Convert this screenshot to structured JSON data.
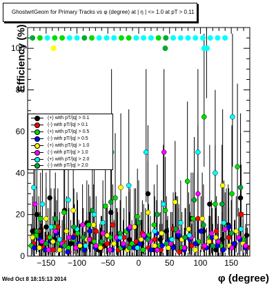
{
  "title": "GhostwrtGeom for Primary Tracks vs φ (degree) at |  η | <= 1.0 at pT > 0.11",
  "timestamp": "Wed Oct  8 18:15:13 2014",
  "colors": {
    "black": "#000000",
    "red": "#ff0000",
    "green": "#00dd00",
    "blue": "#0000ff",
    "yellow": "#ffff00",
    "magenta": "#ff00ff",
    "cyan": "#00ffff",
    "darkgreen": "#00aa33"
  },
  "chart_data": {
    "type": "scatter",
    "xlabel": "φ (degree)",
    "ylabel": "Efficiency (%)",
    "xlim": [
      -180,
      180
    ],
    "ylim": [
      0,
      110
    ],
    "xticks": [
      -150,
      -100,
      -50,
      0,
      50,
      100,
      150
    ],
    "yticks": [
      0,
      20,
      40,
      60,
      80,
      100
    ],
    "legend_position": "left-middle",
    "series": [
      {
        "name": "(+) with pT/|q| > 0.1",
        "color": "#000000",
        "x": [
          -172,
          -165,
          -158,
          -150,
          -144,
          -136,
          -128,
          -120,
          -110,
          -100,
          -92,
          -84,
          -75,
          -65,
          -55,
          -45,
          -35,
          -25,
          -15,
          -5,
          5,
          15,
          25,
          35,
          45,
          55,
          65,
          75,
          85,
          95,
          105,
          115,
          125,
          135,
          145,
          155,
          165,
          175
        ],
        "y": [
          12,
          20,
          5,
          14,
          28,
          8,
          3,
          22,
          6,
          12,
          4,
          16,
          7,
          3,
          5,
          21,
          9,
          4,
          8,
          14,
          6,
          30,
          3,
          8,
          12,
          5,
          9,
          4,
          18,
          6,
          12,
          25,
          3,
          8,
          15,
          5,
          28,
          10
        ]
      },
      {
        "name": "(-) with pT/|q| > 0.1",
        "color": "#ff0000",
        "x": [
          -170,
          -162,
          -155,
          -147,
          -139,
          -131,
          -122,
          -113,
          -104,
          -96,
          -87,
          -78,
          -69,
          -60,
          -51,
          -42,
          -33,
          -24,
          -14,
          -4,
          6,
          16,
          26,
          36,
          46,
          56,
          66,
          76,
          86,
          96,
          106,
          116,
          126,
          136,
          146,
          156,
          166,
          176
        ],
        "y": [
          6,
          12,
          4,
          9,
          3,
          14,
          7,
          2,
          10,
          5,
          3,
          8,
          12,
          4,
          6,
          15,
          3,
          9,
          5,
          7,
          11,
          4,
          8,
          3,
          6,
          13,
          2,
          9,
          5,
          18,
          4,
          7,
          12,
          3,
          9,
          6,
          20,
          4
        ]
      },
      {
        "name": "(+) with pT/|q| > 0.5",
        "color": "#00dd00",
        "x": [
          -174,
          -166,
          -159,
          -152,
          -144,
          -137,
          -129,
          -121,
          -114,
          -106,
          -99,
          -90,
          -81,
          -72,
          -63,
          -54,
          -46,
          -38,
          -29,
          -20,
          -11,
          -2,
          7,
          16,
          25,
          34,
          43,
          52,
          61,
          70,
          79,
          88,
          97,
          106,
          115,
          124,
          133,
          142,
          151,
          160,
          169
        ],
        "y": [
          5,
          10,
          18,
          3,
          9,
          14,
          6,
          21,
          4,
          8,
          11,
          3,
          15,
          7,
          5,
          24,
          9,
          28,
          4,
          12,
          6,
          19,
          3,
          10,
          15,
          5,
          22,
          8,
          12,
          4,
          36,
          18,
          7,
          67,
          9,
          25,
          5,
          14,
          30,
          43,
          8
        ]
      },
      {
        "name": "(-) with pT/|q| > 0.5",
        "color": "#0000ff",
        "x": [
          -169,
          -160,
          -151,
          -142,
          -133,
          -124,
          -115,
          -106,
          -97,
          -88,
          -79,
          -70,
          -61,
          -52,
          -43,
          -34,
          -25,
          -16,
          -7,
          2,
          11,
          20,
          29,
          38,
          47,
          56,
          65,
          74,
          83,
          92,
          101,
          110,
          119,
          128,
          137,
          146,
          155,
          164,
          173
        ],
        "y": [
          4,
          8,
          3,
          7,
          11,
          5,
          2,
          9,
          6,
          3,
          12,
          4,
          7,
          10,
          3,
          8,
          5,
          13,
          4,
          6,
          9,
          3,
          11,
          5,
          7,
          4,
          10,
          3,
          8,
          6,
          12,
          4,
          9,
          5,
          3,
          14,
          6,
          8,
          4
        ]
      },
      {
        "name": "(+) with pT/|q| > 1.0",
        "color": "#ffff00",
        "x": [
          -172,
          -161,
          -150,
          -139,
          -128,
          -117,
          -106,
          -95,
          -84,
          -73,
          -62,
          -51,
          -40,
          -29,
          -18,
          -7,
          4,
          15,
          26,
          37,
          48,
          59,
          70,
          81,
          92,
          103,
          114,
          125,
          136,
          147,
          158,
          169
        ],
        "y": [
          9,
          4,
          18,
          7,
          3,
          12,
          22,
          5,
          8,
          15,
          4,
          10,
          6,
          33,
          3,
          14,
          8,
          21,
          5,
          11,
          4,
          26,
          8,
          13,
          3,
          18,
          7,
          9,
          34,
          5,
          12,
          6
        ]
      },
      {
        "name": "(-) with pT/|q| > 1.0",
        "color": "#ff00ff",
        "x": [
          -168,
          -157,
          -146,
          -135,
          -124,
          -113,
          -102,
          -91,
          -80,
          -69,
          -58,
          -47,
          -36,
          -25,
          -14,
          -3,
          8,
          19,
          30,
          41,
          52,
          63,
          74,
          85,
          96,
          107,
          118,
          129,
          140,
          151,
          162,
          173
        ],
        "y": [
          25,
          7,
          3,
          12,
          6,
          9,
          4,
          15,
          8,
          5,
          11,
          3,
          9,
          6,
          14,
          4,
          10,
          7,
          3,
          50,
          6,
          12,
          4,
          9,
          30,
          5,
          11,
          7,
          13,
          4,
          9,
          5
        ]
      },
      {
        "name": "(+) with pT/|q| > 2.0",
        "color": "#00ffff",
        "x": [
          -170,
          -156,
          -142,
          -128,
          -114,
          -100,
          -86,
          -72,
          -58,
          -44,
          -30,
          -16,
          -2,
          12,
          26,
          40,
          54,
          68,
          82,
          96,
          110,
          124,
          138,
          152,
          166
        ],
        "y": [
          33,
          25,
          14,
          8,
          27,
          13,
          5,
          20,
          16,
          50,
          9,
          34,
          4,
          50,
          12,
          25,
          8,
          16,
          10,
          50,
          100,
          40,
          16,
          67,
          13
        ]
      },
      {
        "name": "(-) with pT/|q| > 2.0",
        "color": "#00aa33",
        "x": [
          -165,
          -150,
          -135,
          -120,
          -105,
          -90,
          -75,
          -60,
          -45,
          -30,
          -15,
          0,
          15,
          30,
          45,
          60,
          75,
          90,
          105,
          120,
          135,
          150,
          165
        ],
        "y": [
          12,
          6,
          18,
          5,
          14,
          9,
          22,
          7,
          26,
          11,
          4,
          16,
          8,
          20,
          6,
          13,
          9,
          27,
          15,
          5,
          25,
          11,
          33
        ]
      }
    ],
    "top_row": {
      "y": 105,
      "x": [
        -172,
        -160,
        -148,
        -136,
        -124,
        -112,
        -100,
        -88,
        -76,
        -64,
        -52,
        -40,
        -28,
        -16,
        -4,
        8,
        20,
        32,
        44,
        56,
        68,
        80,
        92,
        104,
        116,
        128,
        140
      ],
      "colors": [
        "#00aa33",
        "#00dd00",
        "#00ffff",
        "#00dd00",
        "#00dd00",
        "#00ffff",
        "#00ffff",
        "#00aa33",
        "#00dd00",
        "#00ffff",
        "#00ffff",
        "#00ffff",
        "#00dd00",
        "#00dd00",
        "#00ffff",
        "#00ffff",
        "#00ffff",
        "#00dd00",
        "#00aa33",
        "#00ffff",
        "#00ffff",
        "#00ffff",
        "#00ffff",
        "#00ffff",
        "#00ffff",
        "#00ffff",
        "#00ffff"
      ]
    },
    "extra_points": [
      {
        "x": -138,
        "y": 100,
        "color": "#ffff00"
      },
      {
        "x": 43,
        "y": 100,
        "color": "#00aa33"
      },
      {
        "x": 106,
        "y": 100,
        "color": "#00ffff"
      },
      {
        "x": 111,
        "y": 100,
        "color": "#00ffff"
      }
    ]
  }
}
